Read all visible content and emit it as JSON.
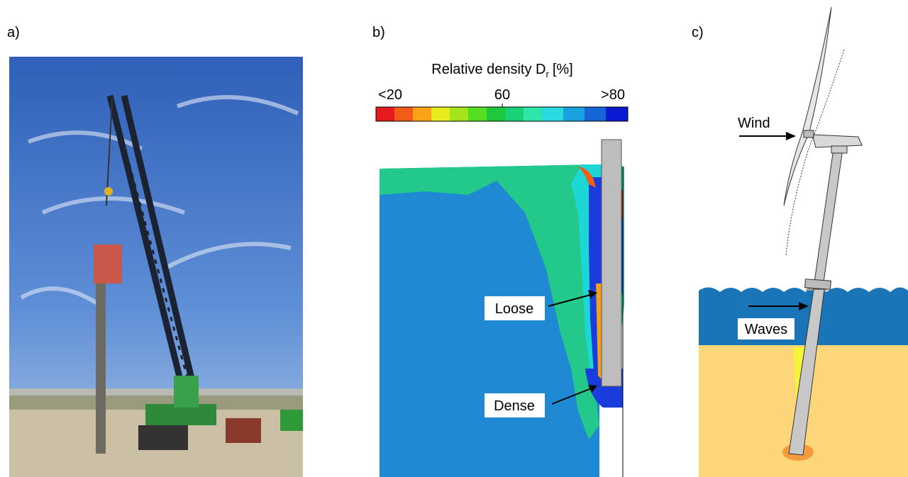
{
  "panels": [
    {
      "label": "a)"
    },
    {
      "label": "b)",
      "colorbar": {
        "title": "Relative density D",
        "title_subscript": "r",
        "title_unit": "[%]",
        "ticks": [
          "<20",
          "60",
          ">80"
        ]
      },
      "annotations": [
        "Loose",
        "Dense"
      ]
    },
    {
      "label": "c)",
      "annotations": [
        "Wind",
        "Waves"
      ]
    }
  ]
}
